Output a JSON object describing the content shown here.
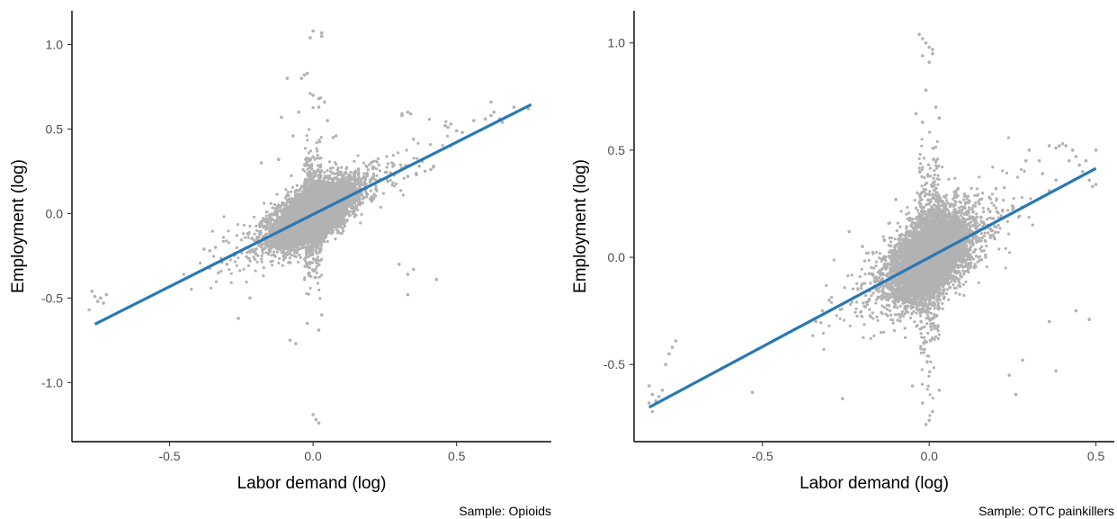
{
  "colors": {
    "points": "#b2b2b2",
    "fit_line": "#2878b4",
    "axis": "#000000",
    "tick_text": "#4d4d4d"
  },
  "chart_data": [
    {
      "type": "scatter",
      "caption": "Sample: Opioids",
      "xlabel": "Labor demand (log)",
      "ylabel": "Employment (log)",
      "xlim": [
        -0.84,
        0.83
      ],
      "ylim": [
        -1.35,
        1.2
      ],
      "xticks": [
        -0.5,
        0.0,
        0.5
      ],
      "xtick_labels": [
        "-0.5",
        "0.0",
        "0.5"
      ],
      "yticks": [
        -1.0,
        -0.5,
        0.0,
        0.5,
        1.0
      ],
      "ytick_labels": [
        "-1.0",
        "-0.5",
        "0.0",
        "0.5",
        "1.0"
      ],
      "grid": false,
      "fit_line": {
        "x": [
          -0.76,
          0.76
        ],
        "y": [
          -0.655,
          0.645
        ]
      },
      "cloud": {
        "n": 6500,
        "sd_x": 0.065,
        "sd_resid": 0.075,
        "slope": 0.855
      },
      "outliers": [
        [
          -0.77,
          -0.46
        ],
        [
          -0.76,
          -0.49
        ],
        [
          -0.75,
          -0.52
        ],
        [
          -0.74,
          -0.5
        ],
        [
          -0.73,
          -0.53
        ],
        [
          -0.72,
          -0.48
        ],
        [
          -0.78,
          -0.57
        ],
        [
          -0.38,
          -0.21
        ],
        [
          -0.36,
          -0.22
        ],
        [
          -0.34,
          -0.2
        ],
        [
          -0.33,
          -0.35
        ],
        [
          -0.3,
          -0.3
        ],
        [
          -0.26,
          -0.62
        ],
        [
          -0.22,
          -0.5
        ],
        [
          -0.01,
          1.04
        ],
        [
          0.0,
          1.08
        ],
        [
          0.03,
          1.07
        ],
        [
          0.03,
          1.05
        ],
        [
          -0.02,
          0.83
        ],
        [
          -0.03,
          0.82
        ],
        [
          -0.04,
          0.8
        ],
        [
          -0.09,
          0.8
        ],
        [
          0.0,
          0.7
        ],
        [
          0.02,
          0.68
        ],
        [
          0.04,
          0.66
        ],
        [
          -0.01,
          0.71
        ],
        [
          -0.11,
          0.57
        ],
        [
          0.02,
          0.63
        ],
        [
          -0.05,
          0.6
        ],
        [
          0.05,
          0.55
        ],
        [
          -0.08,
          -0.75
        ],
        [
          -0.06,
          -0.77
        ],
        [
          0.02,
          -0.69
        ],
        [
          0.0,
          -1.19
        ],
        [
          0.01,
          -1.22
        ],
        [
          0.02,
          -1.24
        ],
        [
          -0.02,
          -0.65
        ],
        [
          0.03,
          -0.6
        ],
        [
          0.31,
          0.59
        ],
        [
          0.33,
          0.6
        ],
        [
          0.34,
          0.59
        ],
        [
          0.31,
          0.58
        ],
        [
          0.35,
          0.44
        ],
        [
          0.3,
          -0.3
        ],
        [
          0.33,
          -0.36
        ],
        [
          0.35,
          -0.33
        ],
        [
          0.33,
          -0.48
        ],
        [
          0.43,
          -0.39
        ],
        [
          0.41,
          0.26
        ],
        [
          0.42,
          0.28
        ],
        [
          0.46,
          0.52
        ],
        [
          0.48,
          0.53
        ],
        [
          0.47,
          0.51
        ],
        [
          0.5,
          0.49
        ],
        [
          0.52,
          0.48
        ],
        [
          0.56,
          0.55
        ],
        [
          0.6,
          0.56
        ],
        [
          0.62,
          0.58
        ],
        [
          0.63,
          0.6
        ],
        [
          0.65,
          0.56
        ],
        [
          0.66,
          0.54
        ],
        [
          0.7,
          0.63
        ],
        [
          0.75,
          0.62
        ],
        [
          0.62,
          0.66
        ],
        [
          0.36,
          0.23
        ],
        [
          0.37,
          0.28
        ],
        [
          0.38,
          0.31
        ],
        [
          0.39,
          0.25
        ],
        [
          0.31,
          0.27
        ],
        [
          0.33,
          0.22
        ],
        [
          0.27,
          0.24
        ],
        [
          0.28,
          0.29
        ],
        [
          0.26,
          0.19
        ],
        [
          -0.12,
          0.32
        ],
        [
          -0.18,
          0.3
        ],
        [
          -0.07,
          0.46
        ],
        [
          0.07,
          0.45
        ],
        [
          0.08,
          0.46
        ]
      ]
    },
    {
      "type": "scatter",
      "caption": "Sample: OTC painkillers",
      "xlabel": "Labor demand (log)",
      "ylabel": "Employment (log)",
      "xlim": [
        -0.885,
        0.555
      ],
      "ylim": [
        -0.86,
        1.15
      ],
      "xticks": [
        -0.5,
        0.0,
        0.5
      ],
      "xtick_labels": [
        "-0.5",
        "0.0",
        "0.5"
      ],
      "yticks": [
        -0.5,
        0.0,
        0.5,
        1.0
      ],
      "ytick_labels": [
        "-0.5",
        "0.0",
        "0.5",
        "1.0"
      ],
      "grid": false,
      "fit_line": {
        "x": [
          -0.84,
          0.5
        ],
        "y": [
          -0.7,
          0.415
        ]
      },
      "cloud": {
        "n": 6500,
        "sd_x": 0.055,
        "sd_resid": 0.09,
        "slope": 0.832
      },
      "outliers": [
        [
          -0.84,
          -0.6
        ],
        [
          -0.83,
          -0.64
        ],
        [
          -0.84,
          -0.68
        ],
        [
          -0.83,
          -0.72
        ],
        [
          -0.82,
          -0.67
        ],
        [
          -0.81,
          -0.65
        ],
        [
          -0.8,
          -0.62
        ],
        [
          -0.79,
          -0.5
        ],
        [
          -0.78,
          -0.45
        ],
        [
          -0.77,
          -0.42
        ],
        [
          -0.76,
          -0.39
        ],
        [
          -0.53,
          -0.63
        ],
        [
          -0.26,
          -0.66
        ],
        [
          -0.3,
          -0.2
        ],
        [
          -0.32,
          -0.25
        ],
        [
          -0.34,
          -0.3
        ],
        [
          -0.24,
          0.12
        ],
        [
          -0.2,
          0.05
        ],
        [
          -0.03,
          1.04
        ],
        [
          -0.02,
          1.02
        ],
        [
          -0.01,
          1.0
        ],
        [
          0.0,
          0.98
        ],
        [
          0.01,
          0.97
        ],
        [
          -0.02,
          0.94
        ],
        [
          0.01,
          0.95
        ],
        [
          0.0,
          0.91
        ],
        [
          -0.04,
          0.67
        ],
        [
          -0.01,
          0.78
        ],
        [
          0.02,
          0.7
        ],
        [
          0.03,
          0.65
        ],
        [
          -0.02,
          0.63
        ],
        [
          0.0,
          -0.76
        ],
        [
          0.01,
          -0.72
        ],
        [
          -0.02,
          -0.68
        ],
        [
          -0.05,
          -0.6
        ],
        [
          0.03,
          -0.62
        ],
        [
          -0.01,
          -0.78
        ],
        [
          0.24,
          -0.55
        ],
        [
          0.26,
          -0.64
        ],
        [
          0.28,
          -0.48
        ],
        [
          0.38,
          -0.53
        ],
        [
          0.36,
          -0.3
        ],
        [
          0.44,
          -0.25
        ],
        [
          0.48,
          -0.29
        ],
        [
          0.3,
          0.5
        ],
        [
          0.29,
          0.45
        ],
        [
          0.33,
          0.45
        ],
        [
          0.34,
          0.39
        ],
        [
          0.36,
          0.52
        ],
        [
          0.38,
          0.51
        ],
        [
          0.39,
          0.52
        ],
        [
          0.4,
          0.53
        ],
        [
          0.41,
          0.52
        ],
        [
          0.42,
          0.45
        ],
        [
          0.43,
          0.5
        ],
        [
          0.44,
          0.47
        ],
        [
          0.45,
          0.43
        ],
        [
          0.46,
          0.4
        ],
        [
          0.47,
          0.45
        ],
        [
          0.48,
          0.36
        ],
        [
          0.49,
          0.33
        ],
        [
          0.5,
          0.34
        ],
        [
          0.5,
          0.5
        ],
        [
          0.38,
          0.36
        ],
        [
          0.36,
          0.31
        ],
        [
          0.2,
          0.32
        ],
        [
          0.18,
          0.28
        ],
        [
          0.15,
          0.25
        ],
        [
          0.25,
          0.24
        ],
        [
          0.22,
          0.22
        ],
        [
          0.12,
          0.18
        ],
        [
          -0.1,
          0.27
        ],
        [
          0.08,
          0.3
        ]
      ]
    }
  ]
}
